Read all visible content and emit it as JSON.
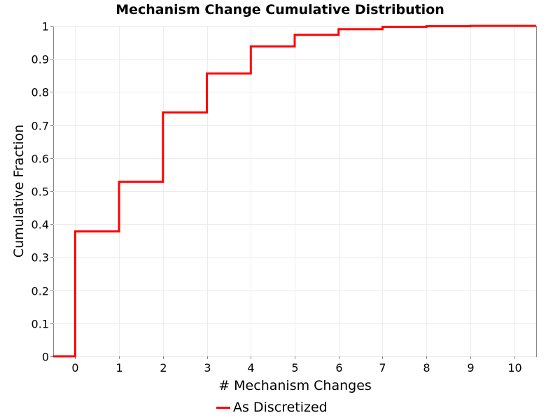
{
  "chart_data": {
    "type": "line",
    "step": true,
    "title": "Mechanism Change Cumulative Distribution",
    "xlabel": "# Mechanism Changes",
    "ylabel": "Cumulative Fraction",
    "xlim": [
      -0.5,
      10.5
    ],
    "ylim": [
      0,
      1
    ],
    "x_ticks": [
      "0",
      "1",
      "2",
      "3",
      "4",
      "5",
      "6",
      "7",
      "8",
      "9",
      "10"
    ],
    "y_ticks": [
      "0",
      "0.1",
      "0.2",
      "0.3",
      "0.4",
      "0.5",
      "0.6",
      "0.7",
      "0.8",
      "0.9",
      "1"
    ],
    "grid": true,
    "legend_position": "bottom-center",
    "series": [
      {
        "name": "As Discretized",
        "color": "#ff0000",
        "x": [
          0,
          1,
          2,
          3,
          4,
          5,
          6,
          7,
          8,
          9,
          10
        ],
        "y": [
          0.378,
          0.528,
          0.738,
          0.856,
          0.938,
          0.973,
          0.99,
          0.997,
          0.999,
          1.0,
          1.0
        ]
      }
    ]
  }
}
